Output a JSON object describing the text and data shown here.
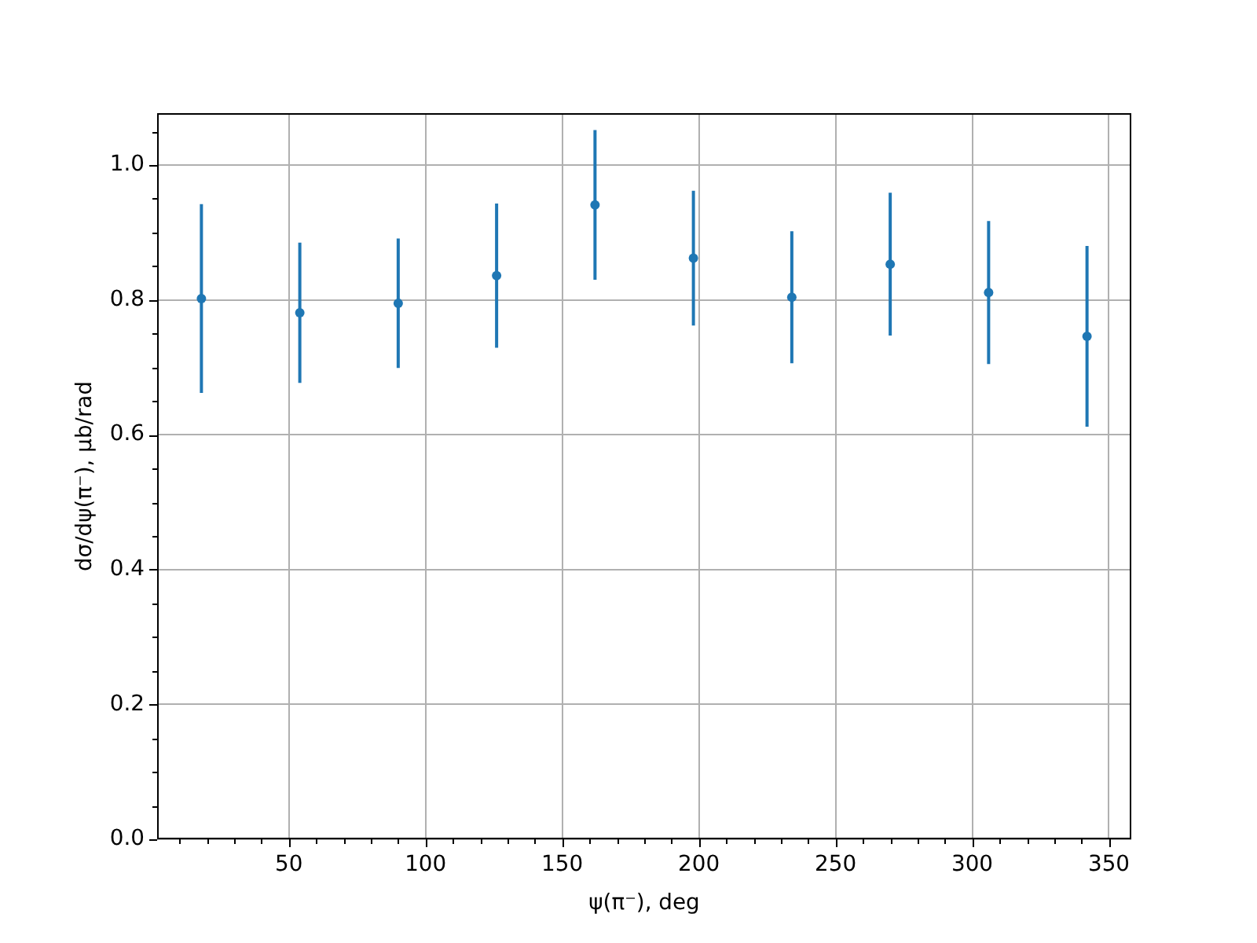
{
  "chart_data": {
    "type": "scatter",
    "xlabel": "ψ(π⁻), deg",
    "ylabel": "dσ/dψ(π⁻), μb/rad",
    "x": [
      18,
      54,
      90,
      126,
      162,
      198,
      234,
      270,
      306,
      342
    ],
    "values": [
      0.802,
      0.781,
      0.795,
      0.836,
      0.941,
      0.862,
      0.804,
      0.853,
      0.811,
      0.746
    ],
    "errors": [
      0.14,
      0.104,
      0.096,
      0.107,
      0.111,
      0.1,
      0.098,
      0.106,
      0.106,
      0.134
    ],
    "color": "#1f77b4",
    "marker": "circle",
    "grid": true,
    "xlim": [
      1.8,
      358.2
    ],
    "ylim": [
      0,
      1.077
    ],
    "xticks": [
      {
        "value": 10,
        "label": null
      },
      {
        "value": 20,
        "label": null
      },
      {
        "value": 30,
        "label": null
      },
      {
        "value": 40,
        "label": null
      },
      50,
      {
        "value": 60,
        "label": null
      },
      {
        "value": 70,
        "label": null
      },
      {
        "value": 80,
        "label": null
      },
      {
        "value": 90,
        "label": null
      },
      100,
      {
        "value": 110,
        "label": null
      },
      {
        "value": 120,
        "label": null
      },
      {
        "value": 130,
        "label": null
      },
      {
        "value": 140,
        "label": null
      },
      150,
      {
        "value": 160,
        "label": null
      },
      {
        "value": 170,
        "label": null
      },
      {
        "value": 180,
        "label": null
      },
      {
        "value": 190,
        "label": null
      },
      200,
      {
        "value": 210,
        "label": null
      },
      {
        "value": 220,
        "label": null
      },
      {
        "value": 230,
        "label": null
      },
      {
        "value": 240,
        "label": null
      },
      250,
      {
        "value": 260,
        "label": null
      },
      {
        "value": 270,
        "label": null
      },
      {
        "value": 280,
        "label": null
      },
      {
        "value": 290,
        "label": null
      },
      300,
      {
        "value": 310,
        "label": null
      },
      {
        "value": 320,
        "label": null
      },
      {
        "value": 330,
        "label": null
      },
      {
        "value": 340,
        "label": null
      },
      350
    ],
    "yticks": [
      {
        "value": 0,
        "label": "0.0"
      },
      {
        "value": 0.05,
        "label": null
      },
      {
        "value": 0.1,
        "label": null
      },
      {
        "value": 0.15,
        "label": null
      },
      0.2,
      {
        "value": 0.25,
        "label": null
      },
      {
        "value": 0.3,
        "label": null
      },
      {
        "value": 0.35,
        "label": null
      },
      0.4,
      {
        "value": 0.45,
        "label": null
      },
      {
        "value": 0.5,
        "label": null
      },
      {
        "value": 0.55,
        "label": null
      },
      0.6,
      {
        "value": 0.65,
        "label": null
      },
      {
        "value": 0.7,
        "label": null
      },
      {
        "value": 0.75,
        "label": null
      },
      0.8,
      {
        "value": 0.85,
        "label": null
      },
      {
        "value": 0.9,
        "label": null
      },
      {
        "value": 0.95,
        "label": null
      },
      {
        "value": 1,
        "label": "1.0"
      },
      {
        "value": 1.05,
        "label": null
      }
    ]
  }
}
